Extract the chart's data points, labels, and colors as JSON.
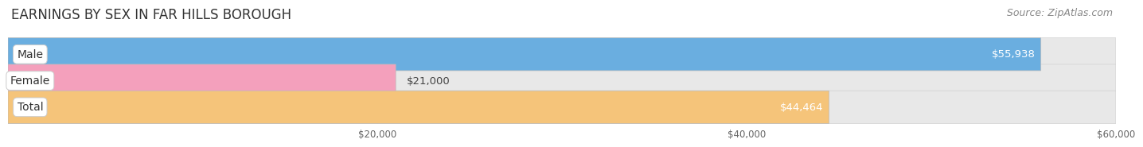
{
  "title": "EARNINGS BY SEX IN FAR HILLS BOROUGH",
  "source": "Source: ZipAtlas.com",
  "categories": [
    "Male",
    "Female",
    "Total"
  ],
  "values": [
    55938,
    21000,
    44464
  ],
  "bar_colors": [
    "#6aaee0",
    "#f4a0bc",
    "#f5c47a"
  ],
  "label_values": [
    "$55,938",
    "$21,000",
    "$44,464"
  ],
  "value_inside": [
    true,
    false,
    true
  ],
  "xlim_min": 0,
  "xlim_max": 60000,
  "xticks": [
    20000,
    40000,
    60000
  ],
  "xtick_labels": [
    "$20,000",
    "$40,000",
    "$60,000"
  ],
  "background_color": "#ffffff",
  "bar_bg_color": "#e8e8e8",
  "title_fontsize": 12,
  "source_fontsize": 9,
  "bar_height": 0.62,
  "bar_label_fontsize": 9.5,
  "category_label_fontsize": 10
}
